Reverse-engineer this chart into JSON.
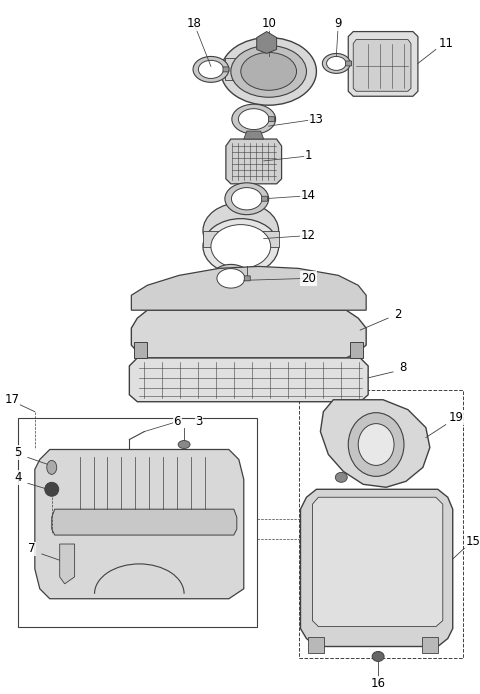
{
  "bg_color": "#ffffff",
  "line_color": "#404040",
  "label_color": "#000000",
  "fig_width": 4.8,
  "fig_height": 6.94,
  "dpi": 100
}
